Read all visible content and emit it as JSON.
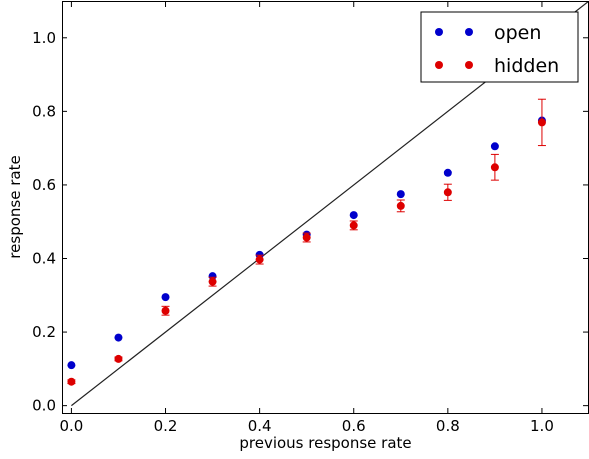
{
  "chart_data": {
    "type": "scatter",
    "title": "",
    "xlabel": "previous response rate",
    "ylabel": "response rate",
    "xlim": [
      -0.02,
      1.1
    ],
    "ylim": [
      -0.02,
      1.1
    ],
    "xticks": [
      "0.0",
      "0.2",
      "0.4",
      "0.6",
      "0.8",
      "1.0"
    ],
    "yticks": [
      "0.0",
      "0.2",
      "0.4",
      "0.6",
      "0.8",
      "1.0"
    ],
    "grid": false,
    "legend_position": "top-right",
    "reference_line": {
      "from": [
        0,
        0
      ],
      "to": [
        1.1,
        1.1
      ],
      "color": "#222222"
    },
    "series": [
      {
        "name": "open",
        "color": "#0000cc",
        "x": [
          0.0,
          0.1,
          0.2,
          0.3,
          0.4,
          0.5,
          0.6,
          0.7,
          0.8,
          0.9,
          1.0
        ],
        "y": [
          0.11,
          0.185,
          0.295,
          0.352,
          0.41,
          0.465,
          0.518,
          0.575,
          0.633,
          0.705,
          0.775
        ]
      },
      {
        "name": "hidden",
        "color": "#dd0000",
        "x": [
          0.0,
          0.1,
          0.2,
          0.3,
          0.4,
          0.5,
          0.6,
          0.7,
          0.8,
          0.9,
          1.0
        ],
        "y": [
          0.065,
          0.127,
          0.258,
          0.337,
          0.397,
          0.457,
          0.49,
          0.543,
          0.58,
          0.648,
          0.77
        ],
        "error": [
          0.005,
          0.005,
          0.012,
          0.012,
          0.012,
          0.012,
          0.012,
          0.016,
          0.022,
          0.035,
          0.063
        ]
      }
    ]
  }
}
